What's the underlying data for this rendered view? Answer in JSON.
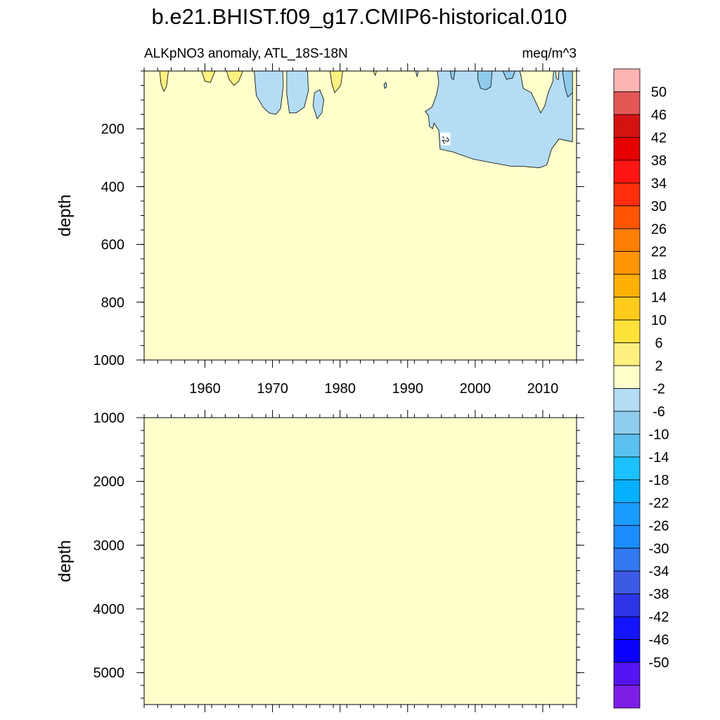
{
  "title": "b.e21.BHIST.f09_g17.CMIP6-historical.010",
  "colors": {
    "background": "#ffffff",
    "axis": "#000000",
    "contour_line": "#000000",
    "label_box": "#ffffff"
  },
  "chart_data": [
    {
      "type": "contour",
      "panel": "upper",
      "subtitle_left": "ALKpNO3 anomaly, ATL_18S-18N",
      "subtitle_right": "meq/m^3",
      "ylabel": "depth",
      "xlabel": "",
      "xlim": [
        1951,
        2015
      ],
      "ylim": [
        0,
        1000
      ],
      "y_inverted": true,
      "xticks": [
        1960,
        1970,
        1980,
        1990,
        2000,
        2010
      ],
      "xtick_labels": [
        "1960",
        "1970",
        "1980",
        "1990",
        "2000",
        "2010"
      ],
      "yticks": [
        200,
        400,
        600,
        800,
        1000
      ],
      "ytick_labels": [
        "200",
        "400",
        "600",
        "800",
        "1000"
      ],
      "background_fill": "#ffffcc",
      "regions": [
        {
          "name": "pos-1954",
          "fill": "#fff07f",
          "points": [
            [
              1953.3,
              0
            ],
            [
              1954.6,
              0
            ],
            [
              1954.3,
              55
            ],
            [
              1953.9,
              70
            ],
            [
              1953.5,
              45
            ]
          ]
        },
        {
          "name": "pos-1959",
          "fill": "#fff07f",
          "points": [
            [
              1959.5,
              0
            ],
            [
              1961.5,
              0
            ],
            [
              1960.8,
              40
            ],
            [
              1960.0,
              35
            ]
          ]
        },
        {
          "name": "pos-1964",
          "fill": "#fff07f",
          "points": [
            [
              1963.2,
              0
            ],
            [
              1965.6,
              0
            ],
            [
              1965.0,
              35
            ],
            [
              1964.3,
              50
            ],
            [
              1963.6,
              30
            ]
          ]
        },
        {
          "name": "neg-1969",
          "fill": "#b4dcf5",
          "points": [
            [
              1967.3,
              0
            ],
            [
              1971.5,
              0
            ],
            [
              1971.6,
              50
            ],
            [
              1971.2,
              130
            ],
            [
              1970.5,
              150
            ],
            [
              1969.5,
              145
            ],
            [
              1968.6,
              125
            ],
            [
              1967.6,
              85
            ]
          ]
        },
        {
          "name": "neg-1974",
          "fill": "#b4dcf5",
          "points": [
            [
              1972.1,
              0
            ],
            [
              1975.2,
              0
            ],
            [
              1975.3,
              70
            ],
            [
              1974.7,
              125
            ],
            [
              1973.5,
              145
            ],
            [
              1972.5,
              145
            ],
            [
              1972.1,
              80
            ]
          ]
        },
        {
          "name": "neg-1977",
          "fill": "#b4dcf5",
          "points": [
            [
              1976.2,
              75
            ],
            [
              1977.0,
              65
            ],
            [
              1977.6,
              100
            ],
            [
              1977.3,
              145
            ],
            [
              1976.6,
              165
            ],
            [
              1976.0,
              120
            ]
          ]
        },
        {
          "name": "pos-1979",
          "fill": "#fff07f",
          "points": [
            [
              1978.5,
              0
            ],
            [
              1980.4,
              0
            ],
            [
              1980.1,
              50
            ],
            [
              1979.2,
              75
            ],
            [
              1978.8,
              45
            ]
          ]
        },
        {
          "name": "pos-1985",
          "fill": "#fff07f",
          "points": [
            [
              1984.9,
              0
            ],
            [
              1985.4,
              0
            ],
            [
              1985.2,
              15
            ]
          ]
        },
        {
          "name": "neg-1986",
          "fill": "#b4dcf5",
          "points": [
            [
              1986.5,
              45
            ],
            [
              1986.8,
              40
            ],
            [
              1986.9,
              55
            ],
            [
              1986.6,
              60
            ]
          ]
        },
        {
          "name": "neg-1991",
          "fill": "#b4dcf5",
          "points": [
            [
              1991.2,
              0
            ],
            [
              1991.6,
              0
            ],
            [
              1991.4,
              20
            ]
          ]
        },
        {
          "name": "neg-recent",
          "fill": "#b4dcf5",
          "points": [
            [
              1994.4,
              0
            ],
            [
              2014.4,
              0
            ],
            [
              2014.4,
              245
            ],
            [
              2012.4,
              235
            ],
            [
              2011.3,
              270
            ],
            [
              2010.6,
              325
            ],
            [
              2009.5,
              335
            ],
            [
              2007.1,
              330
            ],
            [
              2005.4,
              330
            ],
            [
              2003.1,
              320
            ],
            [
              1999.7,
              305
            ],
            [
              1996.7,
              280
            ],
            [
              1994.8,
              270
            ],
            [
              1994.6,
              205
            ],
            [
              1993.9,
              180
            ],
            [
              1993.7,
              200
            ],
            [
              1993.2,
              190
            ],
            [
              1993.1,
              155
            ],
            [
              1992.6,
              140
            ],
            [
              1993.6,
              125
            ],
            [
              1994.3,
              80
            ],
            [
              1994.6,
              40
            ]
          ]
        },
        {
          "name": "neg-1996-inner",
          "fill": "#8fcbeb",
          "points": [
            [
              1996.3,
              0
            ],
            [
              1997.0,
              0
            ],
            [
              1996.8,
              30
            ],
            [
              1996.5,
              25
            ]
          ]
        },
        {
          "name": "neg-2001-inner",
          "fill": "#8fcbeb",
          "points": [
            [
              2000.4,
              0
            ],
            [
              2002.5,
              0
            ],
            [
              2002.3,
              55
            ],
            [
              2001.6,
              65
            ],
            [
              2000.8,
              60
            ],
            [
              2000.4,
              30
            ]
          ]
        },
        {
          "name": "neg-2005-inner",
          "fill": "#8fcbeb",
          "points": [
            [
              2004.1,
              0
            ],
            [
              2005.9,
              0
            ],
            [
              2005.5,
              25
            ],
            [
              2004.6,
              28
            ]
          ]
        },
        {
          "name": "neg-2013-inner",
          "fill": "#8fcbeb",
          "points": [
            [
              2012.9,
              0
            ],
            [
              2014.4,
              0
            ],
            [
              2014.4,
              75
            ],
            [
              2013.7,
              90
            ],
            [
              2013.3,
              60
            ]
          ]
        },
        {
          "name": "pos-2007",
          "fill": "#ffffcc",
          "points": [
            [
              2006.6,
              0
            ],
            [
              2011.6,
              0
            ],
            [
              2011.5,
              35
            ],
            [
              2010.8,
              75
            ],
            [
              2010.3,
              120
            ],
            [
              2009.7,
              145
            ],
            [
              2009.0,
              110
            ],
            [
              2008.3,
              75
            ],
            [
              2007.1,
              60
            ],
            [
              2006.8,
              20
            ]
          ]
        },
        {
          "name": "pos-2012-notch",
          "fill": "#ffffcc",
          "points": [
            [
              2011.9,
              0
            ],
            [
              2012.4,
              0
            ],
            [
              2012.3,
              30
            ],
            [
              2012.0,
              25
            ]
          ]
        }
      ],
      "contour_labels": [
        {
          "text": "-2",
          "x": 1995.6,
          "y": 235
        }
      ]
    },
    {
      "type": "contour",
      "panel": "lower",
      "subtitle_left": "",
      "subtitle_right": "",
      "ylabel": "depth",
      "xlabel": "",
      "xlim": [
        1951,
        2015
      ],
      "ylim": [
        1000,
        5500
      ],
      "y_inverted": true,
      "xticks": [
        1960,
        1970,
        1980,
        1990,
        2000,
        2010
      ],
      "xtick_labels": [
        "",
        "",
        "",
        "",
        "",
        ""
      ],
      "yticks": [
        1000,
        2000,
        3000,
        4000,
        5000
      ],
      "ytick_labels": [
        "1000",
        "2000",
        "3000",
        "4000",
        "5000"
      ],
      "background_fill": "#ffffcc",
      "regions": [],
      "contour_labels": []
    }
  ],
  "colorbar": {
    "boundaries": [
      "50",
      "46",
      "42",
      "38",
      "34",
      "30",
      "26",
      "22",
      "18",
      "14",
      "10",
      "6",
      "2",
      "-2",
      "-6",
      "-10",
      "-14",
      "-18",
      "-22",
      "-26",
      "-30",
      "-34",
      "-38",
      "-42",
      "-46",
      "-50"
    ],
    "colors": [
      "#ffb4b4",
      "#e35656",
      "#d41212",
      "#e60000",
      "#ff1414",
      "#ff2e0e",
      "#ff5505",
      "#ff7e05",
      "#ff9505",
      "#ffb005",
      "#fecb1c",
      "#ffe33b",
      "#fff07f",
      "#ffffcc",
      "#b4dcf5",
      "#8fcbeb",
      "#5ac1f0",
      "#1ec1ff",
      "#05b0ff",
      "#1a9cff",
      "#1a8cff",
      "#3278ee",
      "#3c5ae6",
      "#2d34e6",
      "#1414ff",
      "#0a00ff",
      "#5514f5",
      "#7d1ee6"
    ]
  }
}
